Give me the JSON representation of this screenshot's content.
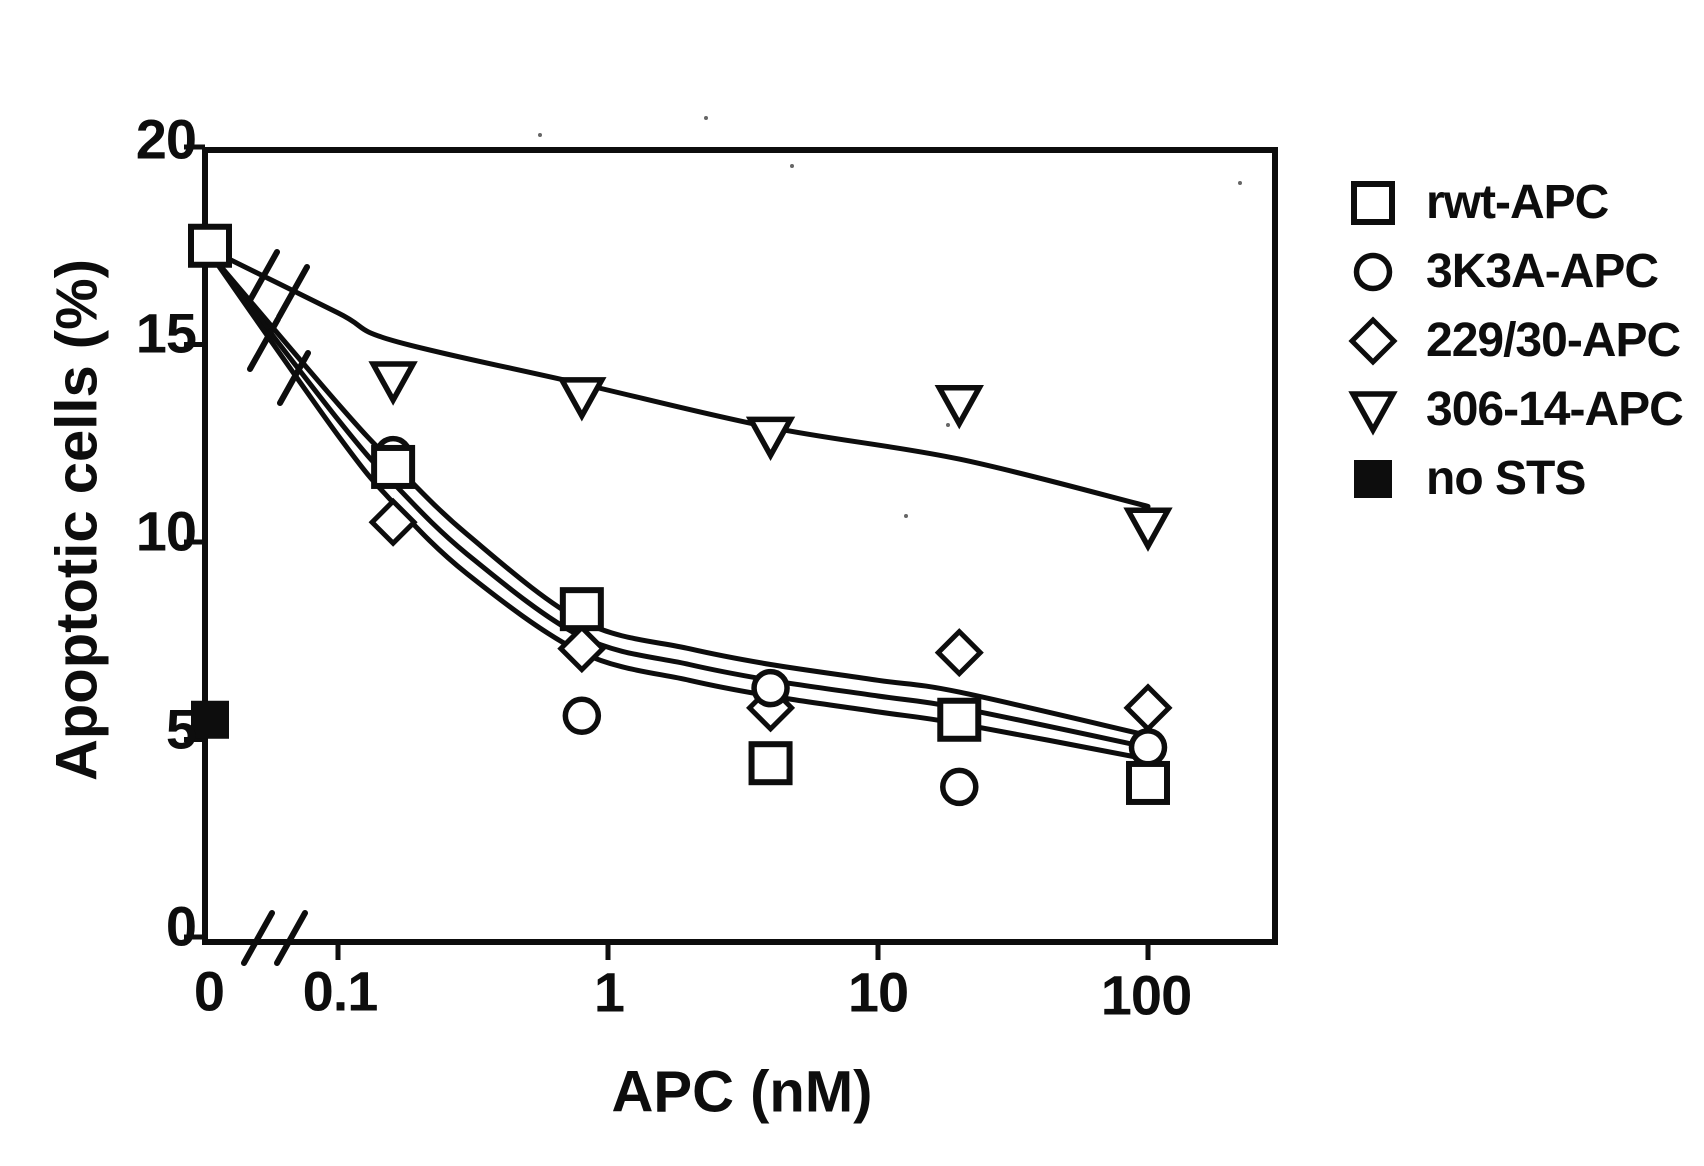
{
  "colors": {
    "ink": "#0d0d0d",
    "background": "#ffffff"
  },
  "axes": {
    "y": {
      "title": "Apoptotic cells (%)",
      "tick_labels": [
        "20",
        "15",
        "10",
        "5",
        "0"
      ]
    },
    "x": {
      "title": "APC (nM)",
      "tick_labels": [
        "0",
        "0.1",
        "1",
        "10",
        "100"
      ],
      "scale": "log",
      "has_break_after_zero": true
    }
  },
  "legend": {
    "items": [
      {
        "label": "rwt-APC",
        "marker": "square-open"
      },
      {
        "label": "3K3A-APC",
        "marker": "circle-open"
      },
      {
        "label": "229/30-APC",
        "marker": "diamond-open"
      },
      {
        "label": "306-14-APC",
        "marker": "triangle-down-open"
      },
      {
        "label": "no STS",
        "marker": "square-filled"
      }
    ]
  },
  "chart_data": {
    "type": "scatter",
    "title": "",
    "xlabel": "APC (nM)",
    "ylabel": "Apoptotic cells (%)",
    "x_scale": "log",
    "ylim": [
      0,
      20
    ],
    "x_ticks": [
      0,
      0.1,
      1,
      10,
      100
    ],
    "y_ticks": [
      0,
      5,
      10,
      15,
      20
    ],
    "x_axis_break_between": [
      0,
      0.1
    ],
    "grid": false,
    "legend_position": "right",
    "series": [
      {
        "name": "rwt-APC",
        "marker": "square-open",
        "points": [
          [
            0,
            17.5
          ],
          [
            0.16,
            11.9
          ],
          [
            0.8,
            8.3
          ],
          [
            4,
            4.4
          ],
          [
            20,
            5.5
          ],
          [
            100,
            3.9
          ]
        ]
      },
      {
        "name": "3K3A-APC",
        "marker": "circle-open",
        "points": [
          [
            0.16,
            12.2
          ],
          [
            0.8,
            5.6
          ],
          [
            4,
            6.3
          ],
          [
            20,
            3.8
          ],
          [
            100,
            4.8
          ]
        ]
      },
      {
        "name": "229/30-APC",
        "marker": "diamond-open",
        "points": [
          [
            0.16,
            10.5
          ],
          [
            0.8,
            7.3
          ],
          [
            4,
            5.8
          ],
          [
            20,
            7.2
          ],
          [
            100,
            5.8
          ]
        ]
      },
      {
        "name": "306-14-APC",
        "marker": "triangle-down-open",
        "points": [
          [
            0.16,
            14.1
          ],
          [
            0.8,
            13.7
          ],
          [
            4,
            12.7
          ],
          [
            20,
            13.5
          ],
          [
            100,
            10.4
          ]
        ]
      },
      {
        "name": "no STS",
        "marker": "square-filled",
        "points": [
          [
            0,
            5.5
          ]
        ]
      }
    ],
    "trend_curves": [
      {
        "series": "306-14-APC",
        "anchors": [
          [
            0,
            17.4
          ],
          [
            0.1,
            15.8
          ],
          [
            0.16,
            15.1
          ],
          [
            0.8,
            14.0
          ],
          [
            4,
            12.9
          ],
          [
            20,
            12.1
          ],
          [
            100,
            10.9
          ]
        ]
      },
      {
        "series": "rwt-APC",
        "anchors": [
          [
            0,
            17.3
          ],
          [
            0.1,
            13.5
          ],
          [
            0.16,
            12.0
          ],
          [
            0.3,
            10.2
          ],
          [
            0.8,
            8.0
          ],
          [
            2,
            7.3
          ],
          [
            4,
            6.9
          ],
          [
            10,
            6.5
          ],
          [
            20,
            6.2
          ],
          [
            100,
            5.1
          ]
        ]
      },
      {
        "series": "3K3A-APC",
        "anchors": [
          [
            0,
            17.3
          ],
          [
            0.1,
            13.1
          ],
          [
            0.16,
            11.5
          ],
          [
            0.3,
            9.7
          ],
          [
            0.8,
            7.6
          ],
          [
            2,
            6.9
          ],
          [
            4,
            6.5
          ],
          [
            10,
            6.1
          ],
          [
            20,
            5.8
          ],
          [
            100,
            4.8
          ]
        ]
      },
      {
        "series": "229/30-APC",
        "anchors": [
          [
            0,
            17.3
          ],
          [
            0.1,
            12.7
          ],
          [
            0.16,
            11.0
          ],
          [
            0.3,
            9.2
          ],
          [
            0.8,
            7.2
          ],
          [
            2,
            6.5
          ],
          [
            4,
            6.1
          ],
          [
            10,
            5.7
          ],
          [
            20,
            5.4
          ],
          [
            100,
            4.5
          ]
        ]
      }
    ]
  }
}
